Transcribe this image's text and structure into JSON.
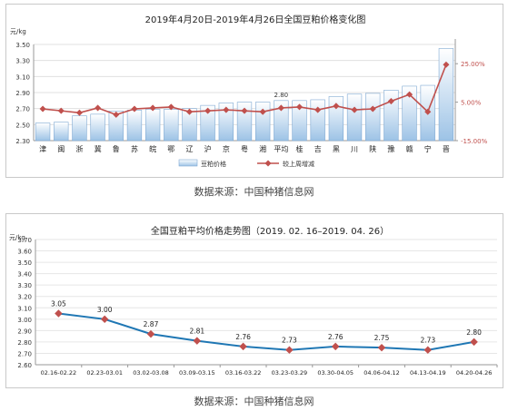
{
  "charts": {
    "top": {
      "source": "数据来源：中国种猪信息网"
    },
    "bottom": {
      "source": "数据来源：中国种猪信息网"
    }
  },
  "chart_data": [
    {
      "type": "bar",
      "title": "2019年4月20日-2019年4月26日全国豆粕价格变化图",
      "ylabel": "元/kg",
      "categories": [
        "津",
        "闽",
        "浙",
        "冀",
        "鲁",
        "苏",
        "皖",
        "鄂",
        "辽",
        "沪",
        "京",
        "粤",
        "湘",
        "平均",
        "桂",
        "吉",
        "黑",
        "川",
        "陕",
        "豫",
        "赣",
        "宁",
        "晋"
      ],
      "ylim": [
        2.3,
        3.5
      ],
      "yticks": [
        "2.30",
        "2.50",
        "2.70",
        "2.90",
        "3.10",
        "3.30",
        "3.50"
      ],
      "y2lim": [
        -15,
        35
      ],
      "y2ticks": [
        "-15.00%",
        "5.00%",
        "25.00%"
      ],
      "series": [
        {
          "name": "豆粕价格",
          "values": [
            2.52,
            2.53,
            2.61,
            2.63,
            2.67,
            2.68,
            2.69,
            2.69,
            2.7,
            2.74,
            2.77,
            2.78,
            2.78,
            2.8,
            2.8,
            2.81,
            2.85,
            2.88,
            2.89,
            2.93,
            2.98,
            2.99,
            3.45
          ]
        },
        {
          "name": "较上周增减",
          "values": [
            1.5,
            0.5,
            -0.5,
            2,
            -1.5,
            1.5,
            2,
            2.5,
            0,
            0.5,
            1,
            0.5,
            0,
            2,
            2.5,
            1,
            3,
            1,
            1.5,
            5.5,
            9.0,
            0,
            24.5
          ]
        }
      ],
      "data_labels": [
        {
          "category": "平均",
          "label": "2.80"
        }
      ],
      "legend_position": "bottom",
      "colors": {
        "bar_top": "#ffffff",
        "bar_bottom": "#9dc3e6",
        "line": "#c0504d"
      }
    },
    {
      "type": "line",
      "title": "全国豆粕平均价格走势图（2019. 02. 16–2019. 04. 26）",
      "ylabel": "元/kg",
      "categories": [
        "02.16-02.22",
        "02.23-03.01",
        "03.02-03.08",
        "03.09-03.15",
        "03.16-03.22",
        "03.23-03.29",
        "03.30-04.05",
        "04.06-04.12",
        "04.13-04.19",
        "04.20-04.26"
      ],
      "ylim": [
        2.6,
        3.7
      ],
      "yticks": [
        "2.60",
        "2.70",
        "2.80",
        "2.90",
        "3.00",
        "3.10",
        "3.20",
        "3.30",
        "3.40",
        "3.50",
        "3.60",
        "3.70"
      ],
      "series": [
        {
          "values": [
            3.05,
            3.0,
            2.87,
            2.81,
            2.76,
            2.73,
            2.76,
            2.75,
            2.73,
            2.8
          ]
        }
      ],
      "data_labels": [
        "3.05",
        "3.00",
        "2.87",
        "2.81",
        "2.76",
        "2.73",
        "2.76",
        "2.75",
        "2.73",
        "2.80"
      ],
      "colors": {
        "line": "#1f77b4",
        "marker": "#c0504d"
      }
    }
  ]
}
